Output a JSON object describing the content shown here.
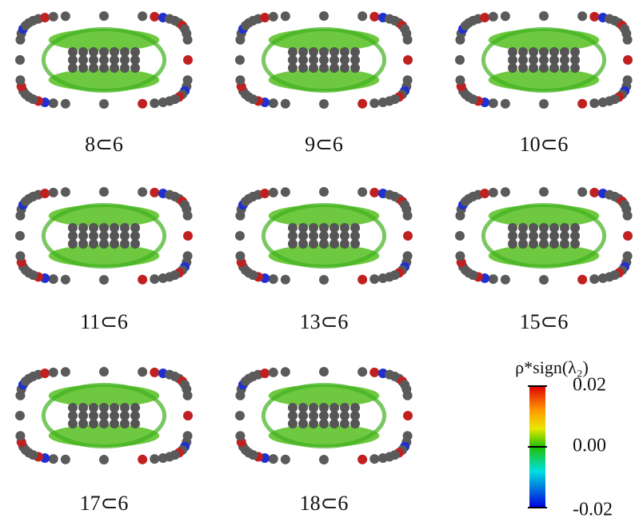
{
  "panels": [
    {
      "label": "8⊂6"
    },
    {
      "label": "9⊂6"
    },
    {
      "label": "10⊂6"
    },
    {
      "label": "11⊂6"
    },
    {
      "label": "13⊂6"
    },
    {
      "label": "15⊂6"
    },
    {
      "label": "17⊂6"
    },
    {
      "label": "18⊂6"
    }
  ],
  "colorbar": {
    "title": "ρ*sign(λ₂)",
    "range": [
      -0.02,
      0.02
    ],
    "ticks": [
      {
        "value": 0.02,
        "label": "0.02"
      },
      {
        "value": 0,
        "label": "0.00"
      },
      {
        "value": -0.02,
        "label": "-0.02"
      }
    ]
  }
}
